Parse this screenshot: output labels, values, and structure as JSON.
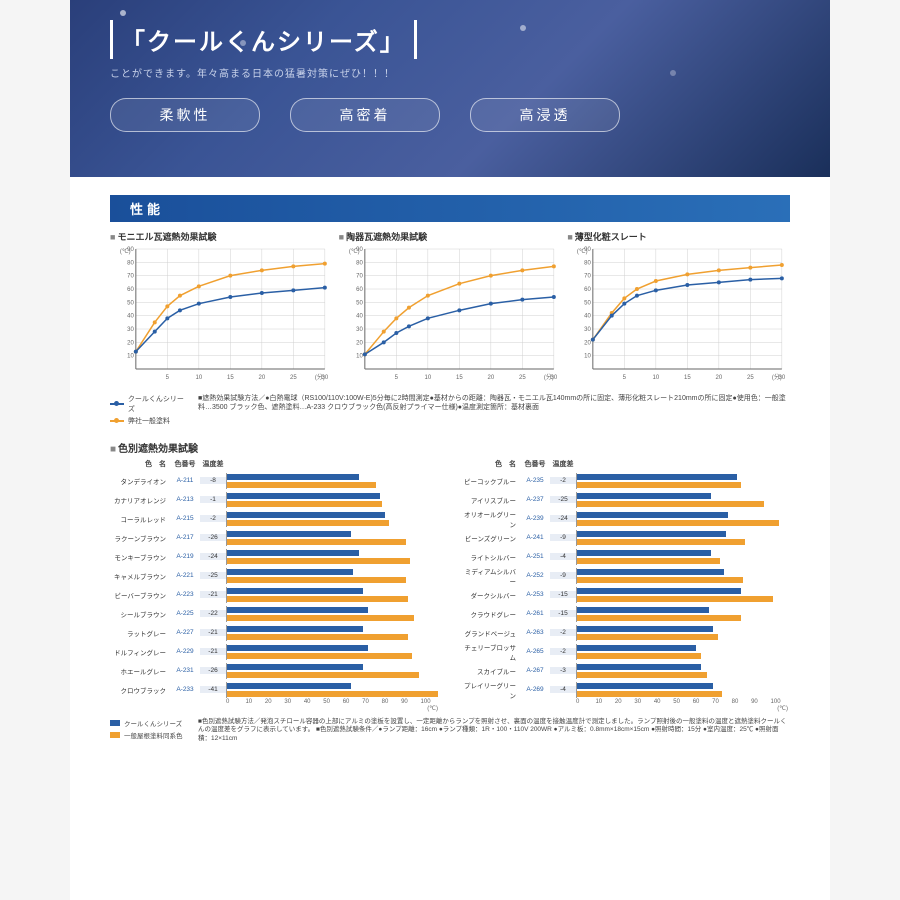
{
  "hero": {
    "title": "「クールくんシリーズ」",
    "subtitle": "ことができます。年々高まる日本の猛暑対策にぜひ！！！",
    "pills": [
      "柔軟性",
      "高密着",
      "高浸透"
    ]
  },
  "section_label": "性能",
  "line_charts": {
    "ylabel": "(℃)",
    "xlabel": "(分)",
    "ylim": [
      0,
      90
    ],
    "ytick": 10,
    "xlim": [
      0,
      30
    ],
    "xtick": 5,
    "grid_color": "#d0d0d0",
    "colors": {
      "blue": "#2a5fa5",
      "orange": "#f0a030"
    },
    "charts": [
      {
        "title": "モニエル瓦遮熱効果試験",
        "blue": [
          [
            0,
            13
          ],
          [
            3,
            28
          ],
          [
            5,
            38
          ],
          [
            7,
            44
          ],
          [
            10,
            49
          ],
          [
            15,
            54
          ],
          [
            20,
            57
          ],
          [
            25,
            59
          ],
          [
            30,
            61
          ]
        ],
        "orange": [
          [
            0,
            13
          ],
          [
            3,
            35
          ],
          [
            5,
            47
          ],
          [
            7,
            55
          ],
          [
            10,
            62
          ],
          [
            15,
            70
          ],
          [
            20,
            74
          ],
          [
            25,
            77
          ],
          [
            30,
            79
          ]
        ]
      },
      {
        "title": "陶器瓦遮熱効果試験",
        "blue": [
          [
            0,
            11
          ],
          [
            3,
            20
          ],
          [
            5,
            27
          ],
          [
            7,
            32
          ],
          [
            10,
            38
          ],
          [
            15,
            44
          ],
          [
            20,
            49
          ],
          [
            25,
            52
          ],
          [
            30,
            54
          ]
        ],
        "orange": [
          [
            0,
            11
          ],
          [
            3,
            28
          ],
          [
            5,
            38
          ],
          [
            7,
            46
          ],
          [
            10,
            55
          ],
          [
            15,
            64
          ],
          [
            20,
            70
          ],
          [
            25,
            74
          ],
          [
            30,
            77
          ]
        ]
      },
      {
        "title": "薄型化粧スレート",
        "blue": [
          [
            0,
            22
          ],
          [
            3,
            40
          ],
          [
            5,
            49
          ],
          [
            7,
            55
          ],
          [
            10,
            59
          ],
          [
            15,
            63
          ],
          [
            20,
            65
          ],
          [
            25,
            67
          ],
          [
            30,
            68
          ]
        ],
        "orange": [
          [
            0,
            22
          ],
          [
            3,
            42
          ],
          [
            5,
            53
          ],
          [
            7,
            60
          ],
          [
            10,
            66
          ],
          [
            15,
            71
          ],
          [
            20,
            74
          ],
          [
            25,
            76
          ],
          [
            30,
            78
          ]
        ]
      }
    ],
    "legend": {
      "blue": "クールくんシリーズ",
      "orange": "弊社一般塗料"
    },
    "caption": "■遮熱効果試験方法／●白熱電球（RS100/110V:100W-E)5分毎に2時間測定●基材からの距離：陶器瓦・モニエル瓦140mmの所に固定、薄形化粧スレート210mmの所に固定●使用色：一般塗料…3500 ブラック色、遮熱塗料…A-233 クロウブラック色(高反射プライマー仕様)●温度測定箇所：基材裏面"
  },
  "color_section": {
    "title": "色別遮熱効果試験",
    "headers": {
      "name": "色　名",
      "code": "色番号",
      "temp": "温度差"
    },
    "xmax": 100,
    "xtick": 10,
    "xunit": "(℃)",
    "colors": {
      "blue": "#2a5fa5",
      "orange": "#f0a030"
    },
    "left": [
      {
        "name": "タンデライオン",
        "code": "A-211",
        "temp": -8,
        "b": 62,
        "o": 70
      },
      {
        "name": "カナリアオレンジ",
        "code": "A-213",
        "temp": -1,
        "b": 72,
        "o": 73
      },
      {
        "name": "コーラルレッド",
        "code": "A-215",
        "temp": -2,
        "b": 74,
        "o": 76
      },
      {
        "name": "ラクーンブラウン",
        "code": "A-217",
        "temp": -26,
        "b": 58,
        "o": 84
      },
      {
        "name": "モンキーブラウン",
        "code": "A-219",
        "temp": -24,
        "b": 62,
        "o": 86
      },
      {
        "name": "キャメルブラウン",
        "code": "A-221",
        "temp": -25,
        "b": 59,
        "o": 84
      },
      {
        "name": "ビーバーブラウン",
        "code": "A-223",
        "temp": -21,
        "b": 64,
        "o": 85
      },
      {
        "name": "シールブラウン",
        "code": "A-225",
        "temp": -22,
        "b": 66,
        "o": 88
      },
      {
        "name": "ラットグレー",
        "code": "A-227",
        "temp": -21,
        "b": 64,
        "o": 85
      },
      {
        "name": "ドルフィングレー",
        "code": "A-229",
        "temp": -21,
        "b": 66,
        "o": 87
      },
      {
        "name": "ホエールグレー",
        "code": "A-231",
        "temp": -26,
        "b": 64,
        "o": 90
      },
      {
        "name": "クロウブラック",
        "code": "A-233",
        "temp": -41,
        "b": 58,
        "o": 99
      }
    ],
    "right": [
      {
        "name": "ピーコックブルー",
        "code": "A-235",
        "temp": -2,
        "b": 75,
        "o": 77
      },
      {
        "name": "アイリスブルー",
        "code": "A-237",
        "temp": -25,
        "b": 63,
        "o": 88
      },
      {
        "name": "オリオールグリーン",
        "code": "A-239",
        "temp": -24,
        "b": 71,
        "o": 95
      },
      {
        "name": "ビーンズグリーン",
        "code": "A-241",
        "temp": -9,
        "b": 70,
        "o": 79
      },
      {
        "name": "ライトシルバー",
        "code": "A-251",
        "temp": -4,
        "b": 63,
        "o": 67
      },
      {
        "name": "ミディアムシルバー",
        "code": "A-252",
        "temp": -9,
        "b": 69,
        "o": 78
      },
      {
        "name": "ダークシルバー",
        "code": "A-253",
        "temp": -15,
        "b": 77,
        "o": 92
      },
      {
        "name": "クラウドグレー",
        "code": "A-261",
        "temp": -15,
        "b": 62,
        "o": 77
      },
      {
        "name": "グランドベージュ",
        "code": "A-263",
        "temp": -2,
        "b": 64,
        "o": 66
      },
      {
        "name": "チェリーブロッサム",
        "code": "A-265",
        "temp": -2,
        "b": 56,
        "o": 58
      },
      {
        "name": "スカイブルー",
        "code": "A-267",
        "temp": -3,
        "b": 58,
        "o": 61
      },
      {
        "name": "プレイリーグリーン",
        "code": "A-269",
        "temp": -4,
        "b": 64,
        "o": 68
      }
    ],
    "legend": {
      "blue": "クールくんシリーズ",
      "orange": "一般屋根塗料同系色"
    },
    "caption": "■色別遮熱試験方法／発泡スチロール容器の上部にアルミの塗板を設置し、一定距離からランプを照射させ、裏面の温度を接触温度計で測定しました。ランプ照射後の一般塗料の温度と遮熱塗料クールくんの温度差をグラフに表示しています。\n■色別遮熱試験条件／●ランプ距離：16cm ●ランプ種類：1R・100・110V 200WR ●アルミ板：0.8mm×18cm×15cm ●照射時間：15分 ●室内温度：25℃ ●照射面積：12×11cm"
  }
}
